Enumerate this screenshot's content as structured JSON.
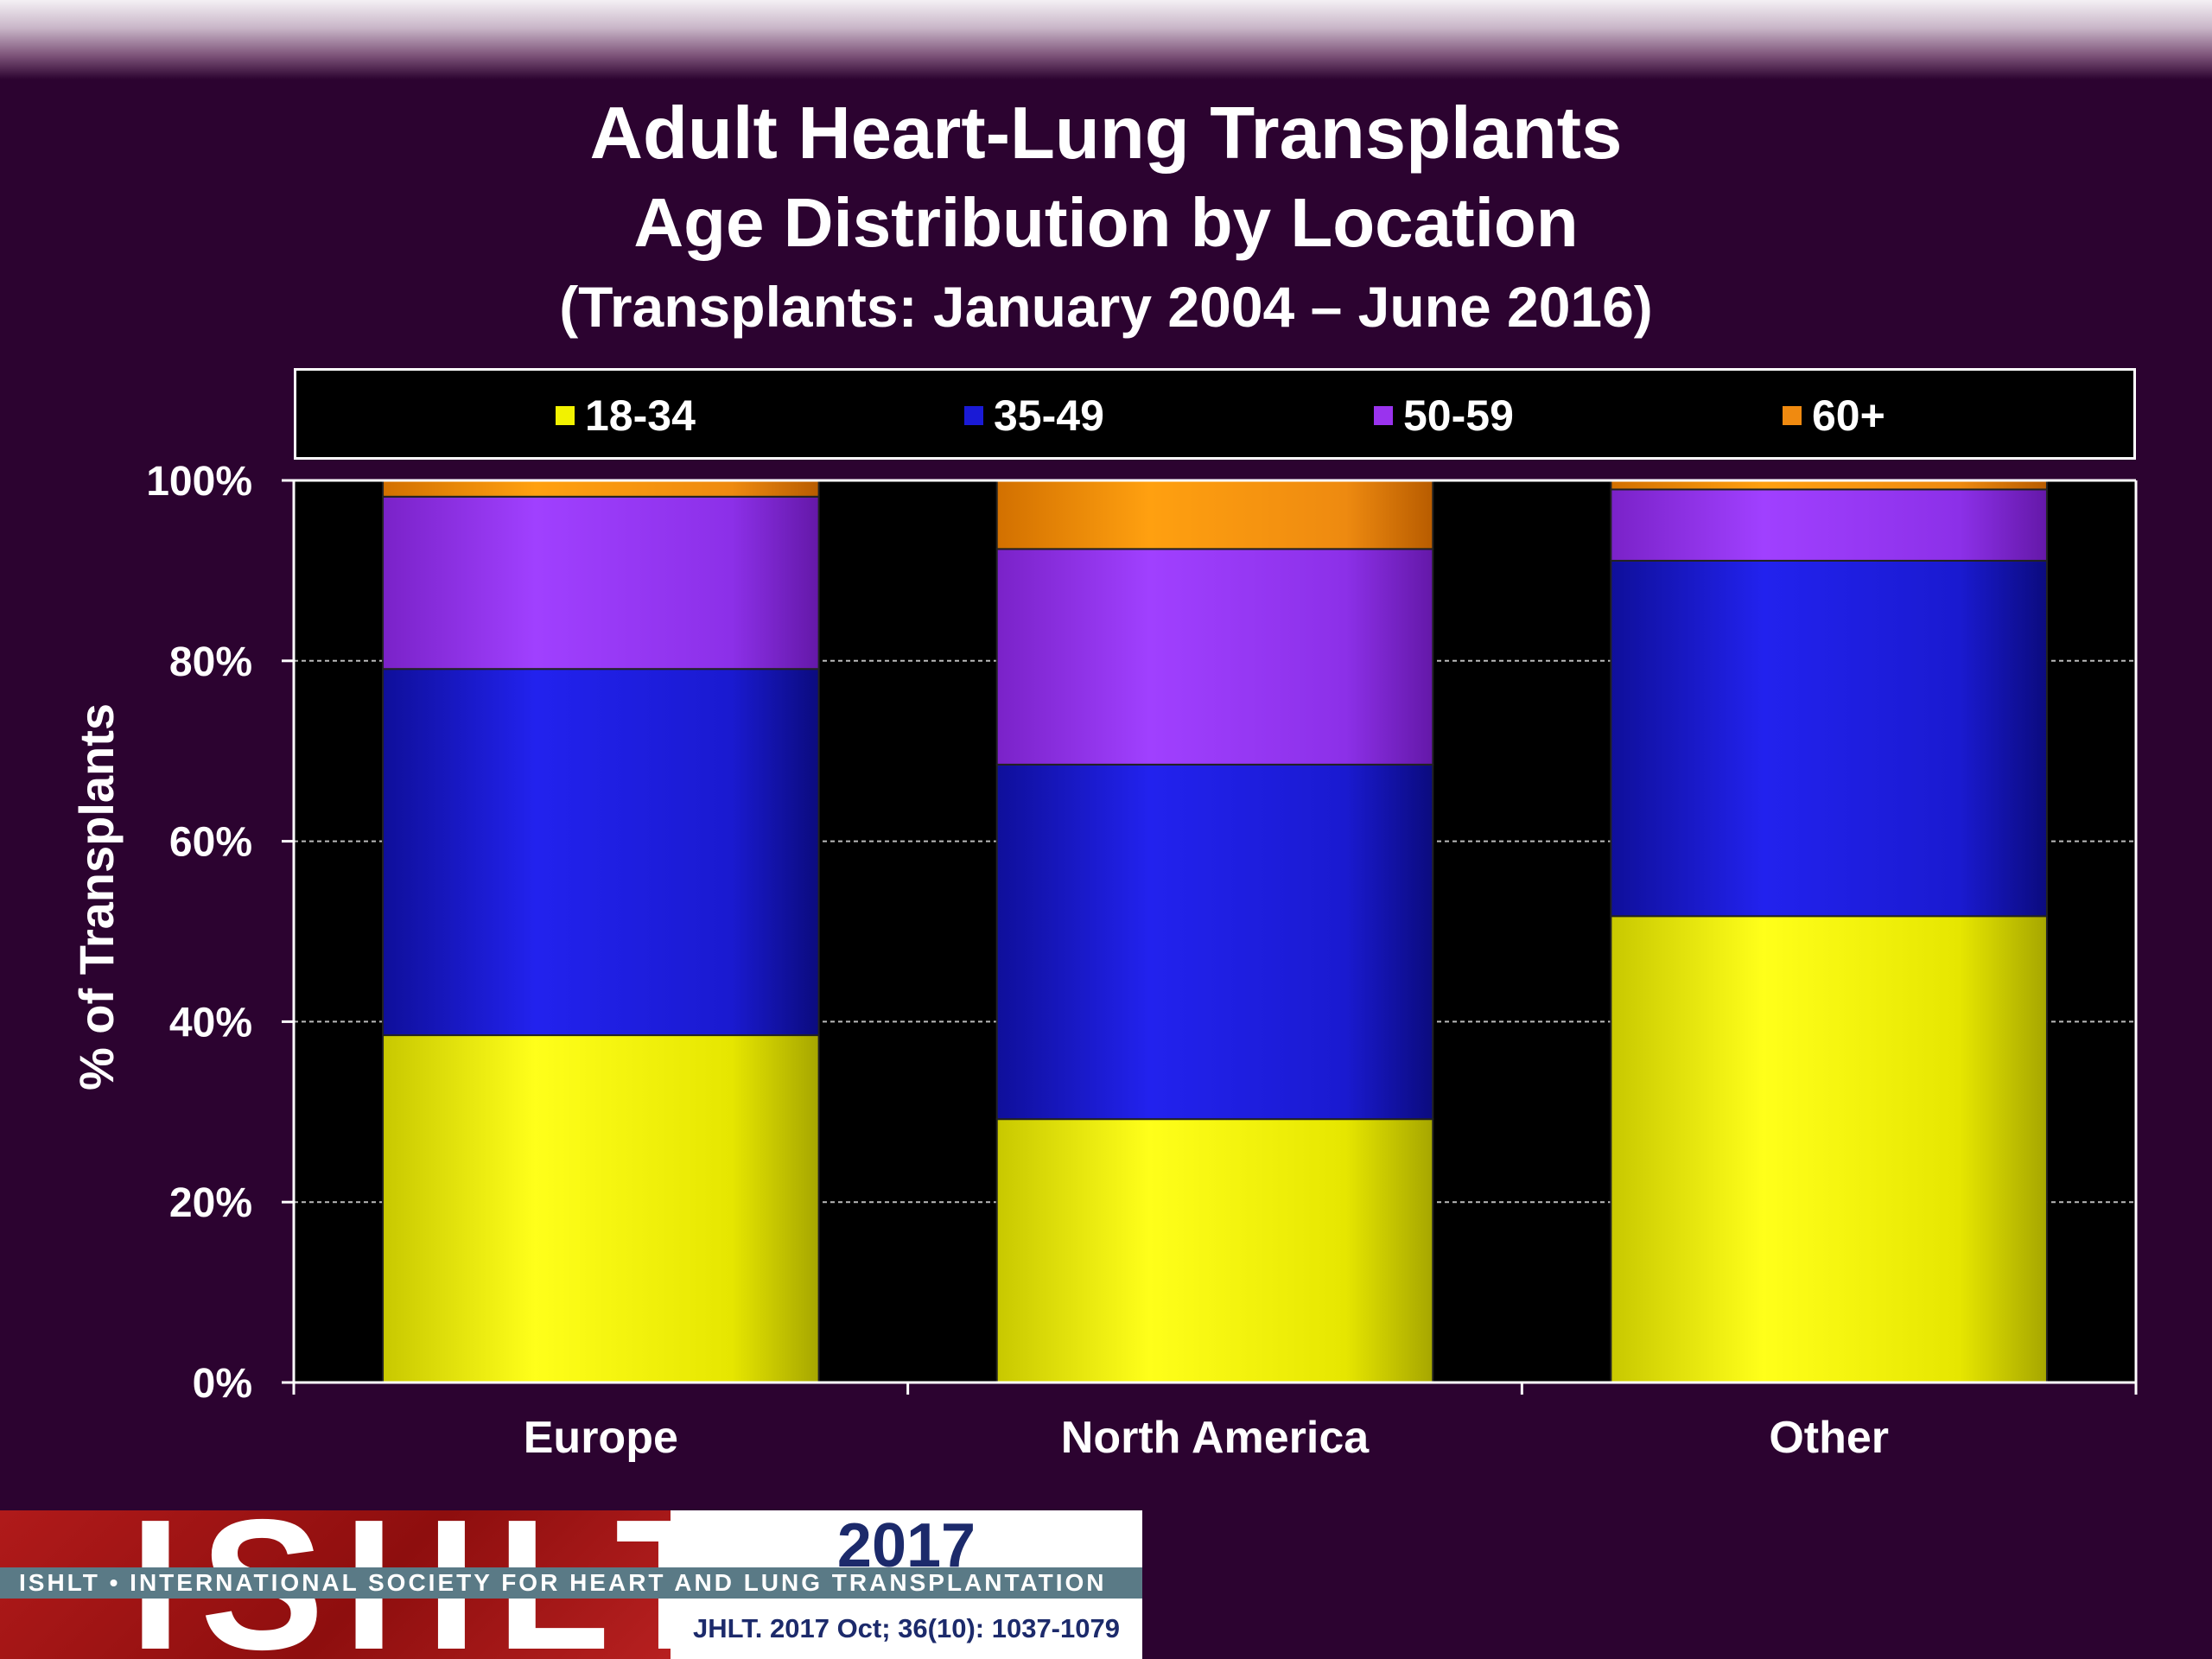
{
  "slide": {
    "title_line1": "Adult Heart-Lung Transplants",
    "title_line2": "Age Distribution by Location",
    "title_line3": "(Transplants: January 2004 – June 2016)"
  },
  "colors": {
    "background": "#2c0330",
    "18-34": "#f2f200",
    "35-49": "#1a1ad6",
    "50-59": "#9a33ee",
    "60+": "#f08a10"
  },
  "chart_data": {
    "type": "bar",
    "stacked": true,
    "categories": [
      "Europe",
      "North America",
      "Other"
    ],
    "series": [
      {
        "name": "18-34",
        "values": [
          38.5,
          29.2,
          51.7
        ]
      },
      {
        "name": "35-49",
        "values": [
          40.6,
          39.3,
          39.4
        ]
      },
      {
        "name": "50-59",
        "values": [
          19.1,
          23.9,
          7.9
        ]
      },
      {
        "name": "60+",
        "values": [
          1.8,
          7.6,
          1.0
        ]
      }
    ],
    "ylabel": "% of Transplants",
    "xlabel": "",
    "ylim": [
      0,
      100
    ],
    "yticks": [
      "0%",
      "20%",
      "40%",
      "60%",
      "80%",
      "100%"
    ],
    "grid": true,
    "legend_position": "top"
  },
  "footer": {
    "logo_text": "ISHLT",
    "band_text": "ISHLT • INTERNATIONAL SOCIETY FOR HEART AND LUNG TRANSPLANTATION",
    "year": "2017",
    "citation": "JHLT. 2017 Oct; 36(10): 1037-1079"
  }
}
